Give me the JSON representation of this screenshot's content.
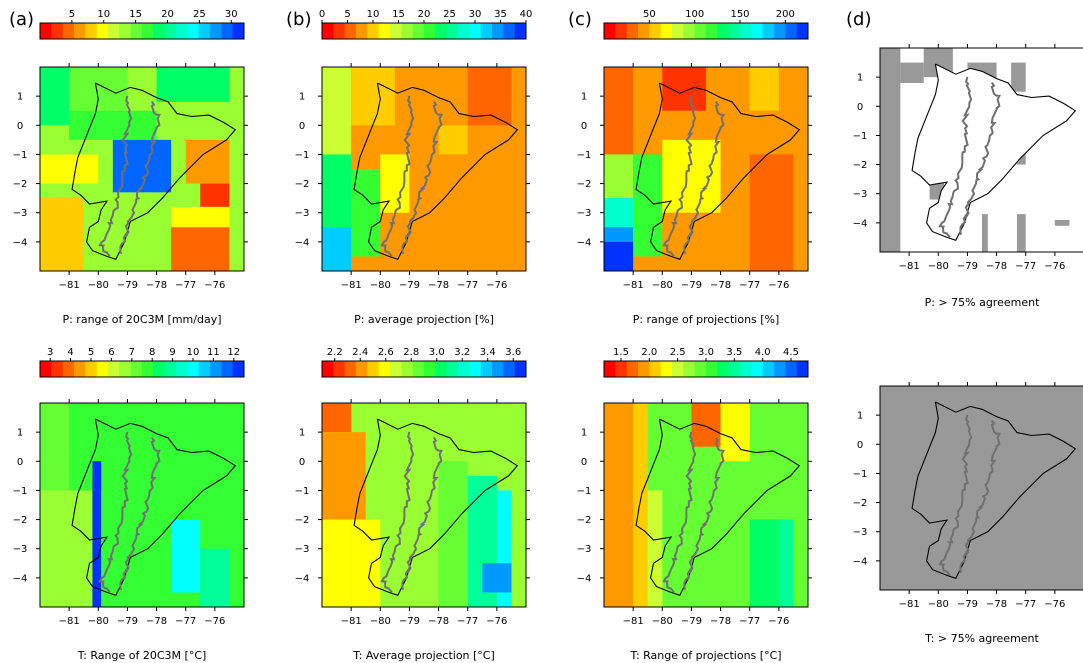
{
  "panel_labels": [
    "(a)",
    "(b)",
    "(c)",
    "(d)"
  ],
  "axes": {
    "x_ticks": [
      -81,
      -80,
      -79,
      -78,
      -77,
      -76
    ],
    "x_range": [
      -82,
      -75
    ],
    "y_ticks": [
      1,
      0,
      -1,
      -2,
      -3,
      -4
    ],
    "y_range": [
      -5,
      2
    ]
  },
  "palette": [
    "#ff0000",
    "#ff3300",
    "#ff6600",
    "#ff9900",
    "#ffcc00",
    "#ffff00",
    "#ccff33",
    "#99ff33",
    "#66ff33",
    "#33ff33",
    "#00ff66",
    "#00ff99",
    "#00ffcc",
    "#00ffff",
    "#00ccff",
    "#0099ff",
    "#0066ff",
    "#0033ff"
  ],
  "mask_color": "#999999",
  "chart_data": [
    {
      "type": "heatmap",
      "row": 1,
      "col": 1,
      "title": "P: range of 20C3M [mm/day]",
      "colorbar": {
        "min": 0,
        "max": 32,
        "ticks": [
          5,
          10,
          15,
          20,
          25,
          30
        ]
      },
      "base_value": 14,
      "cells": [
        {
          "lon": [
            -82,
            -81
          ],
          "lat": [
            2,
            0
          ],
          "v": 18
        },
        {
          "lon": [
            -82,
            -80
          ],
          "lat": [
            -1,
            -2
          ],
          "v": 10
        },
        {
          "lon": [
            -82,
            -80.5
          ],
          "lat": [
            -2.5,
            -5
          ],
          "v": 8
        },
        {
          "lon": [
            -81,
            -79
          ],
          "lat": [
            2,
            0.5
          ],
          "v": 15
        },
        {
          "lon": [
            -81,
            -78
          ],
          "lat": [
            0.5,
            -0.5
          ],
          "v": 16
        },
        {
          "lon": [
            -79.5,
            -77.5
          ],
          "lat": [
            -0.5,
            -2.3
          ],
          "v": 30
        },
        {
          "lon": [
            -78,
            -75.5
          ],
          "lat": [
            2,
            0.8
          ],
          "v": 19
        },
        {
          "lon": [
            -77,
            -75.5
          ],
          "lat": [
            -0.5,
            -2
          ],
          "v": 7
        },
        {
          "lon": [
            -76.5,
            -75.5
          ],
          "lat": [
            -2,
            -2.8
          ],
          "v": 3
        },
        {
          "lon": [
            -77.5,
            -75.5
          ],
          "lat": [
            -2.8,
            -3.5
          ],
          "v": 9
        },
        {
          "lon": [
            -77.5,
            -75.5
          ],
          "lat": [
            -3.5,
            -5
          ],
          "v": 5
        }
      ]
    },
    {
      "type": "heatmap",
      "row": 1,
      "col": 2,
      "title": "P: average projection [%]",
      "colorbar": {
        "min": 0,
        "max": 40,
        "ticks": [
          0,
          5,
          10,
          15,
          20,
          25,
          30,
          35,
          40
        ]
      },
      "base_value": 8,
      "cells": [
        {
          "lon": [
            -82,
            -81
          ],
          "lat": [
            2,
            -1
          ],
          "v": 14
        },
        {
          "lon": [
            -82,
            -81
          ],
          "lat": [
            -1,
            -3.5
          ],
          "v": 24
        },
        {
          "lon": [
            -82,
            -81
          ],
          "lat": [
            -3.5,
            -5
          ],
          "v": 33
        },
        {
          "lon": [
            -81,
            -80
          ],
          "lat": [
            -1.5,
            -4.5
          ],
          "v": 20
        },
        {
          "lon": [
            -81,
            -79.5
          ],
          "lat": [
            2,
            0
          ],
          "v": 10
        },
        {
          "lon": [
            -80,
            -79
          ],
          "lat": [
            -1,
            -3
          ],
          "v": 12
        },
        {
          "lon": [
            -78,
            -77
          ],
          "lat": [
            0,
            -1
          ],
          "v": 11
        },
        {
          "lon": [
            -77,
            -75.5
          ],
          "lat": [
            2,
            0
          ],
          "v": 5
        }
      ]
    },
    {
      "type": "heatmap",
      "row": 1,
      "col": 3,
      "title": "P: range of projections [%]",
      "colorbar": {
        "min": 0,
        "max": 225,
        "ticks": [
          50,
          100,
          150,
          200
        ]
      },
      "base_value": 45,
      "cells": [
        {
          "lon": [
            -82,
            -81
          ],
          "lat": [
            2,
            -1
          ],
          "v": 35
        },
        {
          "lon": [
            -82,
            -81
          ],
          "lat": [
            -1,
            -2.5
          ],
          "v": 95
        },
        {
          "lon": [
            -82,
            -81
          ],
          "lat": [
            -2.5,
            -3.5
          ],
          "v": 160
        },
        {
          "lon": [
            -82,
            -81
          ],
          "lat": [
            -3.5,
            -4
          ],
          "v": 190
        },
        {
          "lon": [
            -82,
            -81
          ],
          "lat": [
            -4,
            -5
          ],
          "v": 220
        },
        {
          "lon": [
            -81,
            -80
          ],
          "lat": [
            -1,
            -4.5
          ],
          "v": 120
        },
        {
          "lon": [
            -80,
            -78
          ],
          "lat": [
            -0.5,
            -3
          ],
          "v": 65
        },
        {
          "lon": [
            -80,
            -78.5
          ],
          "lat": [
            2,
            0.5
          ],
          "v": 20
        },
        {
          "lon": [
            -77,
            -76
          ],
          "lat": [
            2,
            0.5
          ],
          "v": 55
        },
        {
          "lon": [
            -77,
            -75.5
          ],
          "lat": [
            -1,
            -5
          ],
          "v": 25
        }
      ]
    },
    {
      "type": "heatmap",
      "row": 2,
      "col": 1,
      "title": "T: Range of 20C3M [°C]",
      "colorbar": {
        "min": 2.5,
        "max": 12.5,
        "ticks": [
          3,
          4,
          5,
          6,
          7,
          8,
          9,
          10,
          11,
          12
        ]
      },
      "base_value": 7.5,
      "cells": [
        {
          "lon": [
            -82,
            -81
          ],
          "lat": [
            2,
            -1
          ],
          "v": 7
        },
        {
          "lon": [
            -82,
            -80
          ],
          "lat": [
            -1,
            -5
          ],
          "v": 6.6
        },
        {
          "lon": [
            -80.2,
            -79.9
          ],
          "lat": [
            0,
            -5
          ],
          "v": 12
        },
        {
          "lon": [
            -79.9,
            -78
          ],
          "lat": [
            -1,
            -5
          ],
          "v": 8
        },
        {
          "lon": [
            -77.5,
            -76.5
          ],
          "lat": [
            -2,
            -4.5
          ],
          "v": 10
        },
        {
          "lon": [
            -76.5,
            -75.5
          ],
          "lat": [
            -3,
            -5
          ],
          "v": 9
        }
      ]
    },
    {
      "type": "heatmap",
      "row": 2,
      "col": 2,
      "title": "T: Average projection [°C]",
      "colorbar": {
        "min": 2.1,
        "max": 3.7,
        "ticks": [
          2.2,
          2.4,
          2.6,
          2.8,
          3.0,
          3.2,
          3.4,
          3.6
        ]
      },
      "base_value": 2.75,
      "cells": [
        {
          "lon": [
            -82,
            -81
          ],
          "lat": [
            2,
            1
          ],
          "v": 2.35
        },
        {
          "lon": [
            -82,
            -80.5
          ],
          "lat": [
            1,
            -2
          ],
          "v": 2.45
        },
        {
          "lon": [
            -82,
            -81
          ],
          "lat": [
            -2,
            -5
          ],
          "v": 2.55
        },
        {
          "lon": [
            -81,
            -80
          ],
          "lat": [
            -2,
            -5
          ],
          "v": 2.6
        },
        {
          "lon": [
            -78,
            -77
          ],
          "lat": [
            0,
            -5
          ],
          "v": 2.9
        },
        {
          "lon": [
            -77,
            -76
          ],
          "lat": [
            -0.5,
            -5
          ],
          "v": 3.1
        },
        {
          "lon": [
            -76,
            -75.5
          ],
          "lat": [
            -1,
            -5
          ],
          "v": 3.3
        },
        {
          "lon": [
            -76.5,
            -75.5
          ],
          "lat": [
            -3.5,
            -4.5
          ],
          "v": 3.45
        }
      ]
    },
    {
      "type": "heatmap",
      "row": 2,
      "col": 3,
      "title": "T: Range of projections [°C]",
      "colorbar": {
        "min": 1.2,
        "max": 4.8,
        "ticks": [
          1.5,
          2.0,
          2.5,
          3.0,
          3.5,
          4.0,
          4.5
        ]
      },
      "base_value": 2.8,
      "cells": [
        {
          "lon": [
            -82,
            -81
          ],
          "lat": [
            2,
            -5
          ],
          "v": 1.9
        },
        {
          "lon": [
            -81,
            -80.5
          ],
          "lat": [
            2,
            -5
          ],
          "v": 2.0
        },
        {
          "lon": [
            -80.5,
            -80
          ],
          "lat": [
            -1,
            -5
          ],
          "v": 2.4
        },
        {
          "lon": [
            -79,
            -78
          ],
          "lat": [
            2,
            0.5
          ],
          "v": 1.7
        },
        {
          "lon": [
            -78,
            -77
          ],
          "lat": [
            2,
            0
          ],
          "v": 2.2
        },
        {
          "lon": [
            -77,
            -76
          ],
          "lat": [
            -2,
            -5
          ],
          "v": 3.2
        },
        {
          "lon": [
            -76,
            -75.5
          ],
          "lat": [
            -2,
            -5
          ],
          "v": 3.5
        }
      ]
    },
    {
      "type": "heatmap",
      "row": 1,
      "col": 4,
      "title": "P: > 75% agreement",
      "mask": [
        {
          "lon": [
            -82,
            -81.3
          ],
          "lat": [
            2,
            -5
          ]
        },
        {
          "lon": [
            -81.3,
            -80.5
          ],
          "lat": [
            1.5,
            0.8
          ]
        },
        {
          "lon": [
            -80.5,
            -79.5
          ],
          "lat": [
            2,
            1
          ]
        },
        {
          "lon": [
            -79,
            -78
          ],
          "lat": [
            1.5,
            0.5
          ]
        },
        {
          "lon": [
            -77.5,
            -77
          ],
          "lat": [
            1.5,
            0.5
          ]
        },
        {
          "lon": [
            -80,
            -79.5
          ],
          "lat": [
            0.3,
            -0.5
          ]
        },
        {
          "lon": [
            -80.3,
            -79.8
          ],
          "lat": [
            -2,
            -3.2
          ]
        },
        {
          "lon": [
            -77.3,
            -77
          ],
          "lat": [
            -1.5,
            -2
          ]
        },
        {
          "lon": [
            -78.5,
            -78.3
          ],
          "lat": [
            -3.7,
            -5
          ]
        },
        {
          "lon": [
            -77.3,
            -77
          ],
          "lat": [
            -3.7,
            -5
          ]
        },
        {
          "lon": [
            -76,
            -75.5
          ],
          "lat": [
            -3.9,
            -4.1
          ]
        }
      ]
    },
    {
      "type": "heatmap",
      "row": 2,
      "col": 4,
      "title": "T: > 75% agreement",
      "mask": [
        {
          "lon": [
            -82,
            -75
          ],
          "lat": [
            2,
            -5
          ]
        }
      ]
    }
  ]
}
